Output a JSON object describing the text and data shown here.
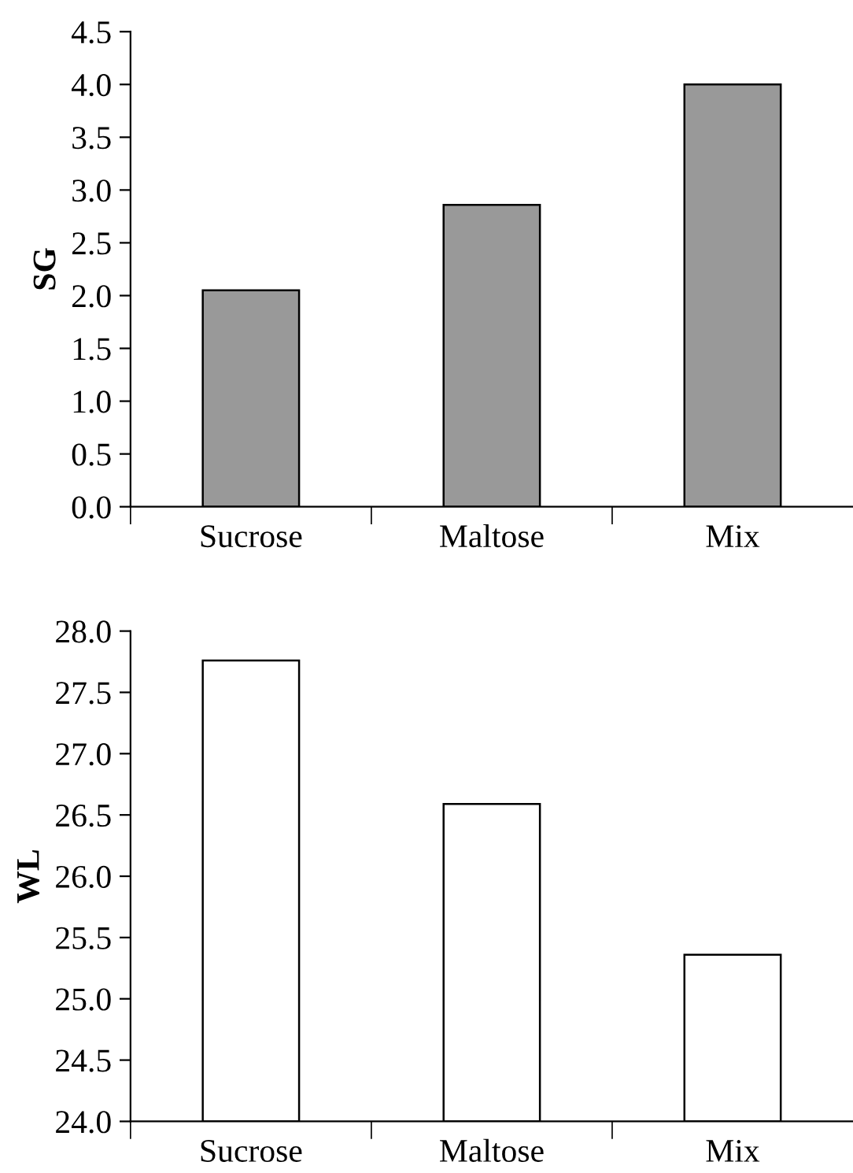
{
  "chart_data": [
    {
      "type": "bar",
      "ylabel": "SG",
      "categories": [
        "Sucrose",
        "Maltose",
        "Mix"
      ],
      "values": [
        2.05,
        2.86,
        4.0
      ],
      "color": "#999999",
      "ylim": [
        0,
        4.5
      ],
      "yticks": [
        {
          "value": 0,
          "label": "0.0"
        },
        0.5,
        {
          "value": 1,
          "label": "1.0"
        },
        1.5,
        {
          "value": 2,
          "label": "2.0"
        },
        2.5,
        {
          "value": 3,
          "label": "3.0"
        },
        3.5,
        {
          "value": 4,
          "label": "4.0"
        },
        4.5
      ],
      "grid": false
    },
    {
      "type": "bar",
      "ylabel": "WL",
      "categories": [
        "Sucrose",
        "Maltose",
        "Mix"
      ],
      "values": [
        27.76,
        26.59,
        25.36
      ],
      "color": "#ffffff",
      "ylim": [
        24,
        28
      ],
      "yticks": [
        {
          "value": 24,
          "label": "24.0"
        },
        24.5,
        {
          "value": 25,
          "label": "25.0"
        },
        25.5,
        {
          "value": 26,
          "label": "26.0"
        },
        26.5,
        {
          "value": 27,
          "label": "27.0"
        },
        27.5,
        {
          "value": 28,
          "label": "28.0"
        }
      ],
      "grid": false
    }
  ]
}
